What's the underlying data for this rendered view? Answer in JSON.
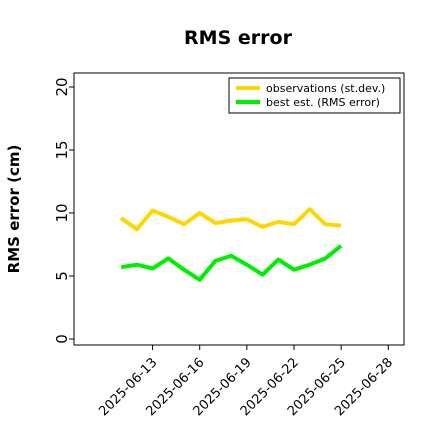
{
  "chart_data": {
    "type": "line",
    "title": "RMS error",
    "xlabel": "",
    "ylabel": "RMS error (cm)",
    "ylim": [
      0,
      21.5
    ],
    "yticks": [
      0,
      5,
      10,
      15,
      20
    ],
    "x_tick_labels": [
      "2025-06-13",
      "2025-06-16",
      "2025-06-19",
      "2025-06-22",
      "2025-06-25",
      "2025-06-28"
    ],
    "x_tick_colors": [
      "#000000",
      "#000000",
      "#228B22",
      "#000000",
      "#000000",
      "#000000"
    ],
    "x": [
      "2025-06-11",
      "2025-06-12",
      "2025-06-13",
      "2025-06-14",
      "2025-06-15",
      "2025-06-16",
      "2025-06-17",
      "2025-06-18",
      "2025-06-19",
      "2025-06-20",
      "2025-06-21",
      "2025-06-22",
      "2025-06-23",
      "2025-06-24",
      "2025-06-25",
      "2025-06-26"
    ],
    "xlim": [
      "2025-06-08",
      "2025-06-29"
    ],
    "grid": false,
    "legend_position": "top-right",
    "series": [
      {
        "name": "observations (st.dev.)",
        "color": "#FFD700",
        "values": [
          9.6,
          8.7,
          10.2,
          9.7,
          9.1,
          10.0,
          9.2,
          9.4,
          9.5,
          8.9,
          9.3,
          9.1,
          10.3,
          9.1,
          9.0,
          null
        ]
      },
      {
        "name": "best est. (RMS error)",
        "color": "#00EE00",
        "values": [
          5.7,
          5.9,
          5.6,
          6.4,
          5.5,
          4.7,
          6.2,
          6.6,
          5.9,
          5.1,
          6.3,
          5.5,
          5.9,
          6.4,
          7.4,
          null
        ]
      }
    ]
  }
}
